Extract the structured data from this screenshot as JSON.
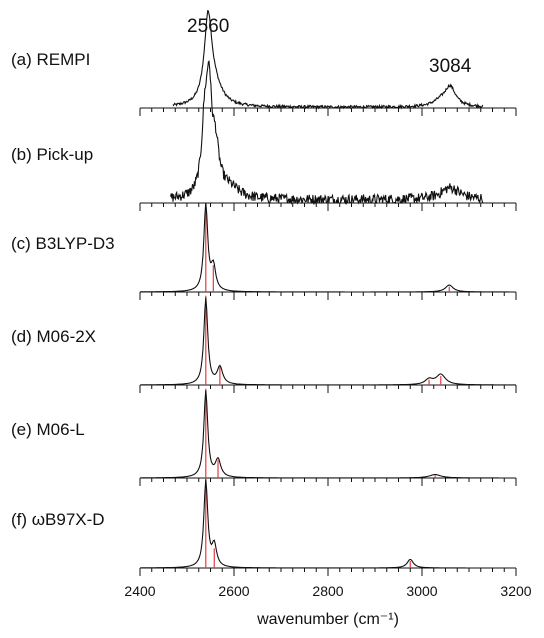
{
  "chart_data": {
    "type": "line",
    "xlabel": "wavenumber (cm⁻¹)",
    "xlim": [
      2400,
      3200
    ],
    "x_ticks": [
      "2400",
      "2600",
      "2800",
      "3000",
      "3200"
    ],
    "grid": false,
    "legend": "none",
    "colors": {
      "spectrum": "#111111",
      "stick": "#e8393d"
    },
    "annotations": [
      {
        "text": "2560",
        "x": 2545,
        "panel": 0
      },
      {
        "text": "3084",
        "x": 3060,
        "panel": 0
      }
    ],
    "panels": [
      {
        "label": "(a) REMPI",
        "kind": "experimental",
        "noise": 0.015,
        "range": [
          2470,
          3130
        ],
        "peaks": [
          [
            2545,
            1.0,
            10
          ],
          [
            2560,
            0.18,
            20
          ],
          [
            3060,
            0.22,
            14
          ],
          [
            3040,
            0.06,
            20
          ]
        ]
      },
      {
        "label": "(b) Pick-up",
        "kind": "experimental",
        "noise": 0.06,
        "range": [
          2465,
          3130
        ],
        "peaks": [
          [
            2538,
            0.85,
            8
          ],
          [
            2547,
            1.0,
            6
          ],
          [
            2560,
            0.55,
            10
          ],
          [
            2590,
            0.12,
            25
          ],
          [
            3060,
            0.14,
            25
          ]
        ]
      },
      {
        "label": "(c) B3LYP-D3",
        "kind": "calculated",
        "range": [
          2400,
          3200
        ],
        "peaks": [
          [
            2540,
            1.0,
            5
          ],
          [
            2556,
            0.28,
            6
          ],
          [
            3058,
            0.08,
            10
          ]
        ],
        "sticks": [
          [
            2540,
            1.0
          ],
          [
            2556,
            0.3
          ],
          [
            3058,
            0.06
          ]
        ]
      },
      {
        "label": "(d) M06-2X",
        "kind": "calculated",
        "range": [
          2400,
          3200
        ],
        "peaks": [
          [
            2540,
            1.0,
            5
          ],
          [
            2570,
            0.2,
            7
          ],
          [
            3040,
            0.12,
            12
          ],
          [
            3015,
            0.06,
            10
          ]
        ],
        "sticks": [
          [
            2540,
            1.0
          ],
          [
            2570,
            0.2
          ],
          [
            3040,
            0.1
          ],
          [
            3015,
            0.06
          ]
        ]
      },
      {
        "label": "(e) M06-L",
        "kind": "calculated",
        "range": [
          2400,
          3200
        ],
        "peaks": [
          [
            2540,
            1.0,
            5
          ],
          [
            2566,
            0.2,
            7
          ],
          [
            3028,
            0.04,
            15
          ]
        ],
        "sticks": [
          [
            2540,
            1.0
          ],
          [
            2566,
            0.2
          ],
          [
            3028,
            0.03
          ]
        ]
      },
      {
        "label": "(f) ωB97X-D",
        "kind": "calculated",
        "range": [
          2400,
          3200
        ],
        "peaks": [
          [
            2540,
            1.0,
            5
          ],
          [
            2558,
            0.25,
            6
          ],
          [
            2975,
            0.1,
            8
          ]
        ],
        "sticks": [
          [
            2540,
            1.0
          ],
          [
            2558,
            0.22
          ],
          [
            2975,
            0.08
          ]
        ]
      }
    ]
  }
}
